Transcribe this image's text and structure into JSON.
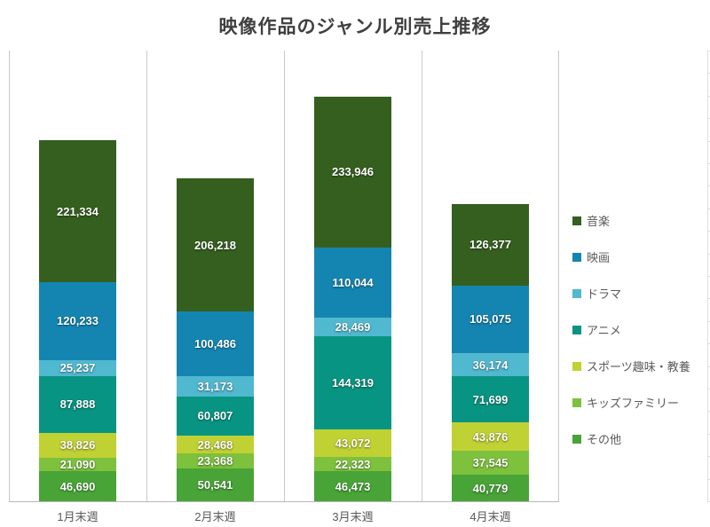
{
  "title": "映像作品のジャンル別売上推移",
  "chart_data": {
    "type": "bar",
    "stacked": true,
    "title": "映像作品のジャンル別売上推移",
    "categories": [
      "1月末週",
      "2月末週",
      "3月末週",
      "4月末週"
    ],
    "series": [
      {
        "name": "音楽",
        "color": "#355F1F",
        "values": [
          221334,
          206218,
          233946,
          126377
        ]
      },
      {
        "name": "映画",
        "color": "#1485B1",
        "values": [
          120233,
          100486,
          110044,
          105075
        ]
      },
      {
        "name": "ドラマ",
        "color": "#50B8CF",
        "values": [
          25237,
          31173,
          28469,
          36174
        ]
      },
      {
        "name": "アニメ",
        "color": "#089482",
        "values": [
          87888,
          60807,
          144319,
          71699
        ]
      },
      {
        "name": "スポーツ趣味・教養",
        "color": "#C0D133",
        "values": [
          38826,
          28468,
          43072,
          43876
        ]
      },
      {
        "name": "キッズファミリー",
        "color": "#7DC13D",
        "values": [
          21090,
          23368,
          22323,
          37545
        ]
      },
      {
        "name": "その他",
        "color": "#48A437",
        "values": [
          46690,
          50541,
          46473,
          40779
        ]
      }
    ],
    "xlabel": "",
    "ylabel": "",
    "ylim": [
      0,
      700000
    ],
    "y_axis_labels_visible": false,
    "grid": "vertical category separators",
    "legend_position": "right",
    "data_labels": true,
    "data_label_format": "#,##0"
  }
}
